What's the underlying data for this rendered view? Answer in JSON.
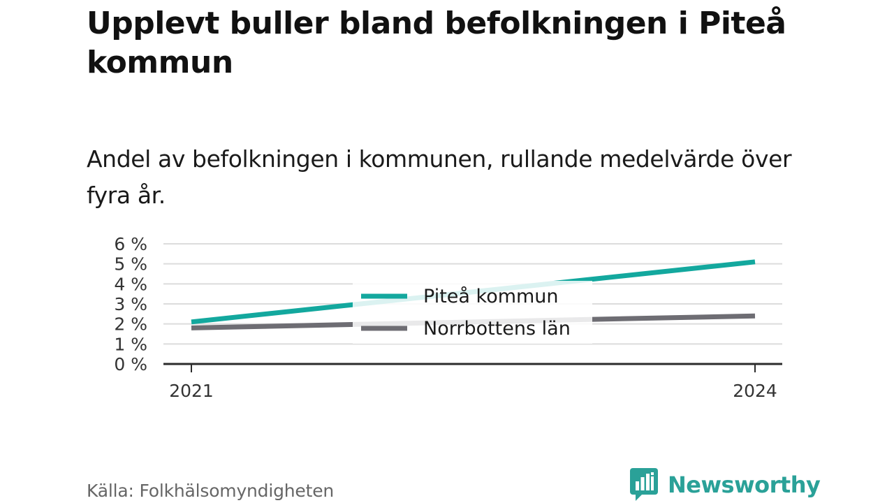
{
  "title": "Upplevt buller bland befolkningen i Piteå kommun",
  "subtitle": "Andel av befolkningen i kommunen, rullande medelvärde över fyra år.",
  "source": "Källa: Folkhälsomyndigheten",
  "brand": {
    "name": "Newsworthy",
    "icon": "bar-chart-speech-bubble-icon",
    "color": "#2aa198"
  },
  "chart_data": {
    "type": "line",
    "x": [
      "2021",
      "2024"
    ],
    "y_ticks": [
      "0 %",
      "1 %",
      "2 %",
      "3 %",
      "4 %",
      "5 %",
      "6 %"
    ],
    "ylim": [
      0,
      6
    ],
    "grid": true,
    "legend": "center",
    "xlabel": "",
    "ylabel": "",
    "series": [
      {
        "name": "Piteå kommun",
        "color": "#13a89e",
        "values": [
          2.1,
          5.1
        ]
      },
      {
        "name": "Norrbottens län",
        "color": "#6e6d73",
        "values": [
          1.8,
          2.4
        ]
      }
    ]
  }
}
